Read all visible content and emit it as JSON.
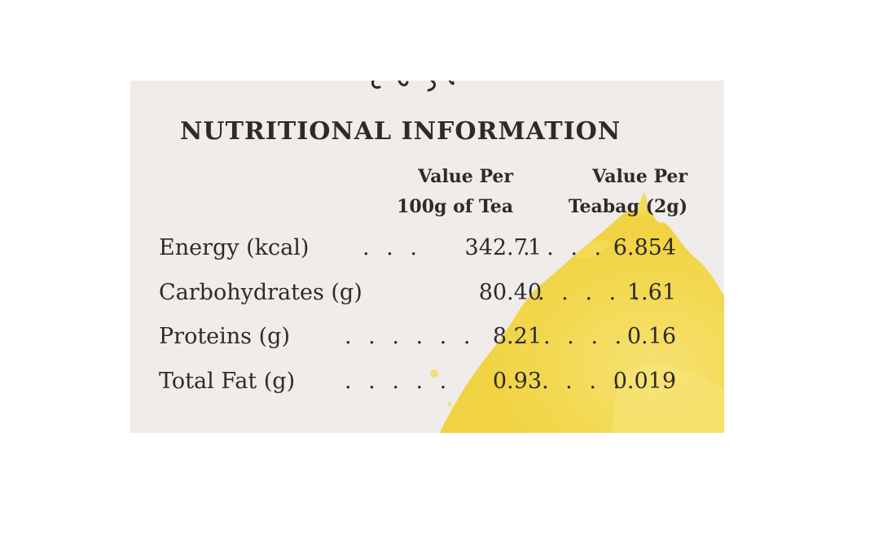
{
  "label": {
    "title": "NUTRITIONAL INFORMATION",
    "columns": [
      {
        "line1": "Value Per",
        "line2": "100g of Tea"
      },
      {
        "line1": "Value Per",
        "line2": "Teabag (2g)"
      }
    ],
    "rows": [
      {
        "name": "Energy (kcal)",
        "per_100g": "342.71",
        "per_teabag": "6.854"
      },
      {
        "name": "Carbohydrates (g)",
        "per_100g": "80.40",
        "per_teabag": "1.61"
      },
      {
        "name": "Proteins (g)",
        "per_100g": "8.21",
        "per_teabag": "0.16"
      },
      {
        "name": "Total Fat (g)",
        "per_100g": "0.93",
        "per_teabag": "0.019"
      }
    ]
  },
  "colors": {
    "background": "#ffffff",
    "card": "#efecea",
    "text": "#2e2a27",
    "watercolor": "#f3dc4f"
  }
}
